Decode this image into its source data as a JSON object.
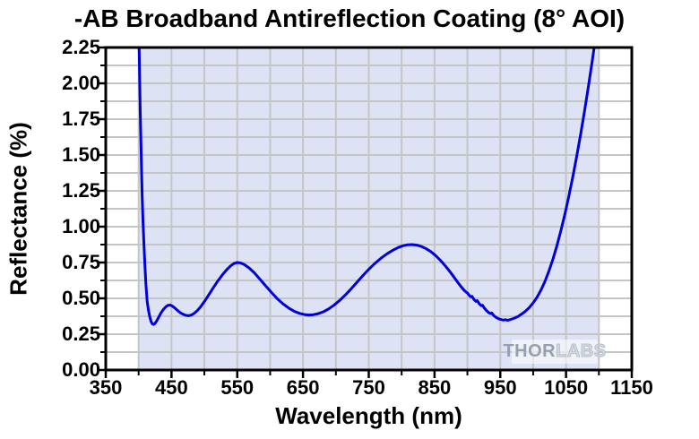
{
  "title": "-AB Broadband Antireflection Coating (8° AOI)",
  "watermark": {
    "part1": "THOR",
    "part2": "LABS"
  },
  "colors": {
    "curve": "#0000dd",
    "band_fill": "#dde3f4",
    "grid": "#c5c5c5",
    "axis": "#000000",
    "background": "#ffffff"
  },
  "chart_data": {
    "type": "line",
    "title": "-AB Broadband Antireflection Coating (8° AOI)",
    "xlabel": "Wavelength (nm)",
    "ylabel": "Reflectance (%)",
    "xlim": [
      350,
      1150
    ],
    "ylim": [
      0,
      2.25
    ],
    "grid": "on",
    "legend": "none",
    "x_major_ticks": [
      350,
      450,
      550,
      650,
      750,
      850,
      950,
      1050,
      1150
    ],
    "x_tick_labels": [
      "350",
      "450",
      "550",
      "650",
      "750",
      "850",
      "950",
      "1050",
      "1150"
    ],
    "x_minor_ticks": [
      400,
      500,
      600,
      700,
      800,
      900,
      1000,
      1100
    ],
    "y_major_ticks": [
      0,
      0.25,
      0.5,
      0.75,
      1.0,
      1.25,
      1.5,
      1.75,
      2.0,
      2.25
    ],
    "y_tick_labels": [
      "0.00",
      "0.25",
      "0.50",
      "0.75",
      "1.00",
      "1.25",
      "1.50",
      "1.75",
      "2.00",
      "2.25"
    ],
    "y_minor_ticks": [
      0.125,
      0.375,
      0.625,
      0.875,
      1.125,
      1.375,
      1.625,
      1.875,
      2.125
    ],
    "x_grid_lines": [
      400,
      450,
      500,
      550,
      600,
      650,
      700,
      750,
      800,
      850,
      900,
      950,
      1000,
      1050,
      1100
    ],
    "y_grid_lines": [
      0.125,
      0.25,
      0.375,
      0.5,
      0.625,
      0.75,
      0.875,
      1.0,
      1.125,
      1.25,
      1.375,
      1.5,
      1.625,
      1.75,
      1.875,
      2.0,
      2.125
    ],
    "shaded_band": {
      "x_start": 400,
      "x_end": 1100
    },
    "series": [
      {
        "name": "Reflectance",
        "points": [
          [
            400.5,
            2.32
          ],
          [
            401.5,
            2.05
          ],
          [
            402.5,
            1.8
          ],
          [
            403.5,
            1.58
          ],
          [
            404.5,
            1.38
          ],
          [
            405.5,
            1.2
          ],
          [
            406.5,
            1.05
          ],
          [
            408,
            0.88
          ],
          [
            409.5,
            0.73
          ],
          [
            411,
            0.6
          ],
          [
            413,
            0.48
          ],
          [
            415,
            0.415
          ],
          [
            417,
            0.37
          ],
          [
            419,
            0.338
          ],
          [
            421,
            0.321
          ],
          [
            423,
            0.318
          ],
          [
            425,
            0.325
          ],
          [
            428,
            0.346
          ],
          [
            431,
            0.372
          ],
          [
            434,
            0.398
          ],
          [
            438,
            0.425
          ],
          [
            442,
            0.444
          ],
          [
            445,
            0.452
          ],
          [
            448,
            0.453
          ],
          [
            451,
            0.447
          ],
          [
            455,
            0.433
          ],
          [
            459,
            0.416
          ],
          [
            464,
            0.398
          ],
          [
            468,
            0.388
          ],
          [
            472,
            0.381
          ],
          [
            476,
            0.379
          ],
          [
            480,
            0.383
          ],
          [
            484,
            0.394
          ],
          [
            489,
            0.413
          ],
          [
            494,
            0.44
          ],
          [
            500,
            0.478
          ],
          [
            506,
            0.52
          ],
          [
            513,
            0.57
          ],
          [
            520,
            0.618
          ],
          [
            527,
            0.662
          ],
          [
            534,
            0.7
          ],
          [
            540,
            0.727
          ],
          [
            545,
            0.743
          ],
          [
            550,
            0.75
          ],
          [
            555,
            0.747
          ],
          [
            561,
            0.735
          ],
          [
            568,
            0.712
          ],
          [
            576,
            0.678
          ],
          [
            584,
            0.636
          ],
          [
            593,
            0.588
          ],
          [
            602,
            0.541
          ],
          [
            611,
            0.497
          ],
          [
            620,
            0.46
          ],
          [
            629,
            0.43
          ],
          [
            637,
            0.409
          ],
          [
            645,
            0.395
          ],
          [
            652,
            0.387
          ],
          [
            659,
            0.384
          ],
          [
            666,
            0.386
          ],
          [
            673,
            0.393
          ],
          [
            681,
            0.406
          ],
          [
            689,
            0.426
          ],
          [
            697,
            0.452
          ],
          [
            706,
            0.486
          ],
          [
            715,
            0.526
          ],
          [
            724,
            0.57
          ],
          [
            733,
            0.617
          ],
          [
            742,
            0.663
          ],
          [
            751,
            0.707
          ],
          [
            760,
            0.746
          ],
          [
            769,
            0.781
          ],
          [
            778,
            0.811
          ],
          [
            787,
            0.836
          ],
          [
            795,
            0.855
          ],
          [
            802,
            0.867
          ],
          [
            809,
            0.874
          ],
          [
            816,
            0.875
          ],
          [
            823,
            0.871
          ],
          [
            830,
            0.862
          ],
          [
            837,
            0.847
          ],
          [
            844,
            0.827
          ],
          [
            851,
            0.801
          ],
          [
            858,
            0.77
          ],
          [
            865,
            0.734
          ],
          [
            872,
            0.695
          ],
          [
            878,
            0.658
          ],
          [
            884,
            0.62
          ],
          [
            890,
            0.584
          ],
          [
            895,
            0.556
          ],
          [
            898,
            0.543
          ],
          [
            900,
            0.538
          ],
          [
            902,
            0.525
          ],
          [
            905,
            0.511
          ],
          [
            907,
            0.514
          ],
          [
            910,
            0.492
          ],
          [
            913,
            0.479
          ],
          [
            915,
            0.484
          ],
          [
            918,
            0.462
          ],
          [
            921,
            0.449
          ],
          [
            923,
            0.452
          ],
          [
            926,
            0.431
          ],
          [
            929,
            0.415
          ],
          [
            932,
            0.402
          ],
          [
            935,
            0.394
          ],
          [
            937,
            0.398
          ],
          [
            940,
            0.38
          ],
          [
            943,
            0.369
          ],
          [
            946,
            0.361
          ],
          [
            949,
            0.355
          ],
          [
            952,
            0.351
          ],
          [
            955,
            0.348
          ],
          [
            958,
            0.351
          ],
          [
            961,
            0.347
          ],
          [
            964,
            0.35
          ],
          [
            968,
            0.356
          ],
          [
            972,
            0.363
          ],
          [
            977,
            0.374
          ],
          [
            982,
            0.389
          ],
          [
            988,
            0.409
          ],
          [
            994,
            0.435
          ],
          [
            1000,
            0.468
          ],
          [
            1006,
            0.508
          ],
          [
            1012,
            0.558
          ],
          [
            1018,
            0.618
          ],
          [
            1024,
            0.69
          ],
          [
            1030,
            0.773
          ],
          [
            1036,
            0.866
          ],
          [
            1042,
            0.97
          ],
          [
            1048,
            1.084
          ],
          [
            1054,
            1.208
          ],
          [
            1060,
            1.342
          ],
          [
            1066,
            1.486
          ],
          [
            1072,
            1.64
          ],
          [
            1078,
            1.804
          ],
          [
            1084,
            1.978
          ],
          [
            1090,
            2.162
          ],
          [
            1095,
            2.32
          ]
        ]
      }
    ]
  }
}
